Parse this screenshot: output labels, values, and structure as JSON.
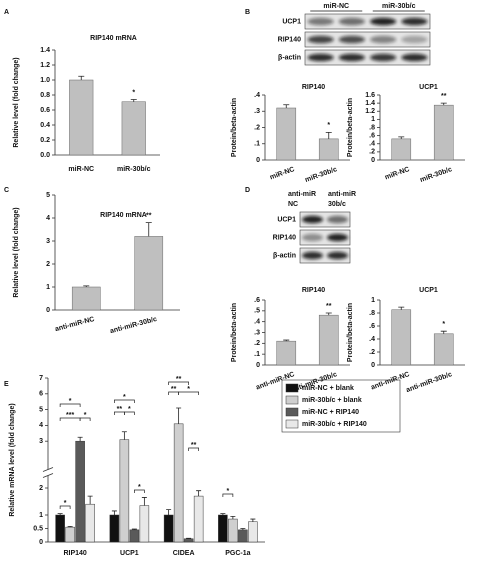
{
  "letters": [
    "A",
    "B",
    "C",
    "D",
    "E"
  ],
  "blot_b": {
    "lane_groups": [
      "miR-NC",
      "miR-30b/c"
    ],
    "rows": [
      "UCP1",
      "RIP140",
      "β-actin"
    ]
  },
  "blot_d": {
    "lane_groups": [
      [
        "anti-miR",
        "NC"
      ],
      [
        "anti-miR",
        "30b/c"
      ]
    ],
    "rows": [
      "UCP1",
      "RIP140",
      "β-actin"
    ]
  },
  "chart_data": [
    {
      "type": "bar",
      "title": "RIP140 mRNA",
      "y_label": "Relative level (fold change)",
      "categories": [
        "miR-NC",
        "miR-30b/c"
      ],
      "values": [
        1.0,
        0.71
      ],
      "errors": [
        0.05,
        0.03
      ],
      "bar_annotations": [
        null,
        "*"
      ],
      "color": "#bfbfbf",
      "ylim": [
        0,
        1.4
      ],
      "yticks": [
        {
          "value": 0,
          "label": "0.0"
        },
        0.2,
        0.4,
        0.6,
        0.8,
        {
          "value": 1,
          "label": "1.0"
        },
        1.2,
        1.4
      ]
    },
    {
      "type": "bar",
      "title": "RIP140",
      "y_label": "Protein/beta-actin",
      "categories": [
        "miR-NC",
        "miR-30b/c"
      ],
      "values": [
        0.32,
        0.13
      ],
      "errors": [
        0.02,
        0.04
      ],
      "bar_annotations": [
        null,
        "*"
      ],
      "color": "#bfbfbf",
      "ylim": [
        0,
        0.4
      ],
      "yticks": [
        0,
        {
          "value": 0.1,
          "label": ".1"
        },
        {
          "value": 0.2,
          "label": ".2"
        },
        {
          "value": 0.3,
          "label": ".3"
        },
        {
          "value": 0.4,
          "label": ".4"
        }
      ]
    },
    {
      "type": "bar",
      "title": "UCP1",
      "y_label": "Protein/beta-actin",
      "categories": [
        "miR-NC",
        "miR-30b/c"
      ],
      "values": [
        0.52,
        1.35
      ],
      "errors": [
        0.05,
        0.05
      ],
      "bar_annotations": [
        null,
        "**"
      ],
      "color": "#bfbfbf",
      "ylim": [
        0,
        1.6
      ],
      "yticks": [
        0,
        {
          "value": 0.2,
          "label": ".2"
        },
        {
          "value": 0.4,
          "label": ".4"
        },
        {
          "value": 0.6,
          "label": ".6"
        },
        {
          "value": 0.8,
          "label": ".8"
        },
        1,
        1.2,
        1.4,
        1.6
      ]
    },
    {
      "type": "bar",
      "title": "RIP140 mRNA",
      "y_label": "Relative level (fold change)",
      "categories": [
        "anti-miR-NC",
        "anti-miR-30b/c"
      ],
      "values": [
        1.0,
        3.2
      ],
      "errors": [
        0.05,
        0.6
      ],
      "bar_annotations": [
        null,
        "**"
      ],
      "color": "#bfbfbf",
      "ylim": [
        0,
        5
      ],
      "yticks": [
        0,
        1,
        2,
        3,
        4,
        5
      ]
    },
    {
      "type": "bar",
      "title": "RIP140",
      "y_label": "Protein/beta-actin",
      "categories": [
        "anti-miR-NC",
        "anti-miR-30b/c"
      ],
      "values": [
        0.22,
        0.46
      ],
      "errors": [
        0.01,
        0.02
      ],
      "bar_annotations": [
        null,
        "**"
      ],
      "color": "#bfbfbf",
      "ylim": [
        0,
        0.6
      ],
      "yticks": [
        0,
        {
          "value": 0.1,
          "label": ".1"
        },
        {
          "value": 0.2,
          "label": ".2"
        },
        {
          "value": 0.3,
          "label": ".3"
        },
        {
          "value": 0.4,
          "label": ".4"
        },
        {
          "value": 0.5,
          "label": ".5"
        },
        {
          "value": 0.6,
          "label": ".6"
        }
      ]
    },
    {
      "type": "bar",
      "title": "UCP1",
      "y_label": "Protein/beta-actin",
      "categories": [
        "anti-miR-NC",
        "anti-miR-30b/c"
      ],
      "values": [
        0.85,
        0.48
      ],
      "errors": [
        0.04,
        0.04
      ],
      "bar_annotations": [
        null,
        "*"
      ],
      "color": "#bfbfbf",
      "ylim": [
        0,
        1
      ],
      "yticks": [
        0,
        {
          "value": 0.2,
          "label": ".2"
        },
        {
          "value": 0.4,
          "label": ".4"
        },
        {
          "value": 0.6,
          "label": ".6"
        },
        {
          "value": 0.8,
          "label": ".8"
        },
        1
      ]
    },
    {
      "type": "grouped_bar",
      "y_label": "Relative mRNA level (fold change)",
      "broken_axis": true,
      "categories": [
        "RIP140",
        "UCP1",
        "CIDEA",
        "PGC-1a"
      ],
      "series": [
        {
          "name": "miR-NC + blank",
          "color": "#111111",
          "values": [
            1.0,
            1.0,
            1.0,
            1.0
          ],
          "errors": [
            0.05,
            0.15,
            0.2,
            0.05
          ]
        },
        {
          "name": "miR-30b/c + blank",
          "color": "#cfcfcf",
          "values": [
            0.55,
            3.1,
            4.1,
            0.85
          ],
          "errors": [
            0.03,
            0.5,
            1.0,
            0.1
          ]
        },
        {
          "name": "miR-NC + RIP140",
          "color": "#5a5a5a",
          "values": [
            3.0,
            0.45,
            0.12,
            0.45
          ],
          "errors": [
            0.25,
            0.03,
            0.02,
            0.05
          ]
        },
        {
          "name": "miR-30b/c + RIP140",
          "color": "#e8e8e8",
          "values": [
            1.4,
            1.35,
            1.7,
            0.75
          ],
          "errors": [
            0.3,
            0.3,
            0.2,
            0.1
          ]
        }
      ],
      "annotations": [
        "*",
        "*",
        "***",
        "*",
        "*",
        "**",
        "*",
        "*",
        "**",
        "**",
        "*",
        "**",
        "*"
      ],
      "ylim": [
        0,
        7
      ],
      "yticks": [
        0,
        0.5,
        1,
        2,
        3,
        4,
        5,
        6,
        7
      ]
    }
  ]
}
